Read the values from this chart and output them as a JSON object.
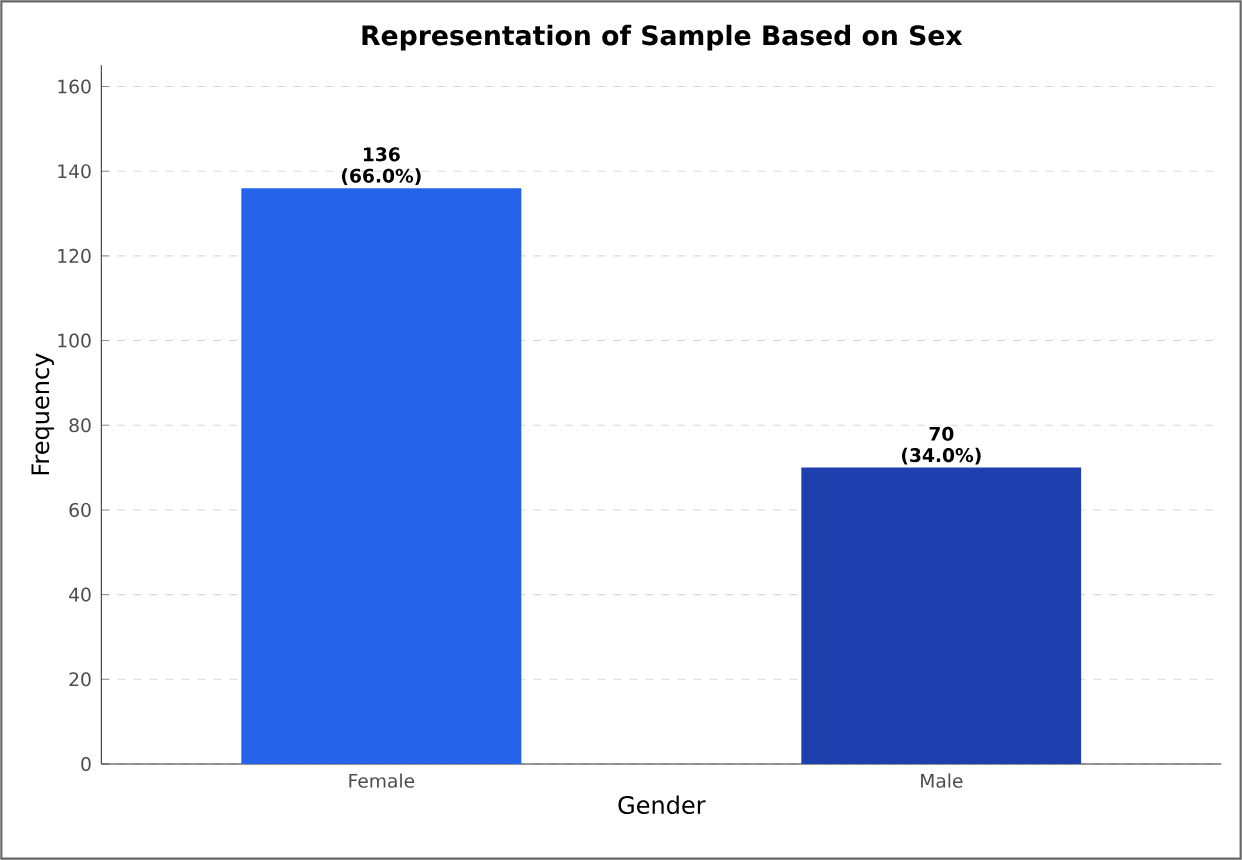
{
  "chart_data": {
    "type": "bar",
    "title": "Representation of Sample Based on Sex",
    "xlabel": "Gender",
    "ylabel": "Frequency",
    "categories": [
      "Female",
      "Male"
    ],
    "values": [
      136,
      70
    ],
    "colors": [
      "#2563eb",
      "#1e40af"
    ],
    "value_labels": [
      "136 (66.0%)",
      "70 (34.0%)"
    ],
    "ylim": [
      0,
      165
    ],
    "yticks": [
      0,
      20,
      40,
      60,
      80,
      100,
      120,
      140,
      160
    ],
    "grid": "y"
  }
}
